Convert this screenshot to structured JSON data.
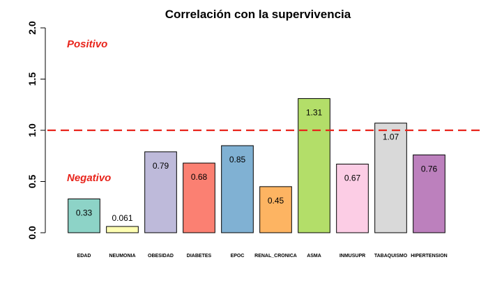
{
  "chart_data": {
    "type": "bar",
    "title": "Correlación con la supervivencia",
    "categories": [
      "EDAD",
      "NEUMONIA",
      "OBESIDAD",
      "DIABETES",
      "EPOC",
      "RENAL_CRONICA",
      "ASMA",
      "INMUSUPR",
      "TABAQUISMO",
      "HIPERTENSION"
    ],
    "values": [
      0.33,
      0.061,
      0.79,
      0.68,
      0.85,
      0.45,
      1.31,
      0.67,
      1.07,
      0.76
    ],
    "value_labels": [
      "0.33",
      "0.061",
      "0.79",
      "0.68",
      "0.85",
      "0.45",
      "1.31",
      "0.67",
      "1.07",
      "0.76"
    ],
    "colors": [
      "#8dd3c7",
      "#ffffb3",
      "#bebada",
      "#fb8072",
      "#80b1d3",
      "#fdb462",
      "#b3de69",
      "#fccde5",
      "#d9d9d9",
      "#bc80bd"
    ],
    "ylim": [
      0,
      2.0
    ],
    "yticks": [
      "0.0",
      "0.5",
      "1.0",
      "1.5",
      "2.0"
    ],
    "reference_line": {
      "y": 1.0,
      "color": "#e8241b",
      "style": "dashed"
    },
    "annotations": {
      "positive": {
        "text": "Positivo",
        "color": "#e8241b"
      },
      "negative": {
        "text": "Negativo",
        "color": "#e8241b"
      }
    }
  }
}
